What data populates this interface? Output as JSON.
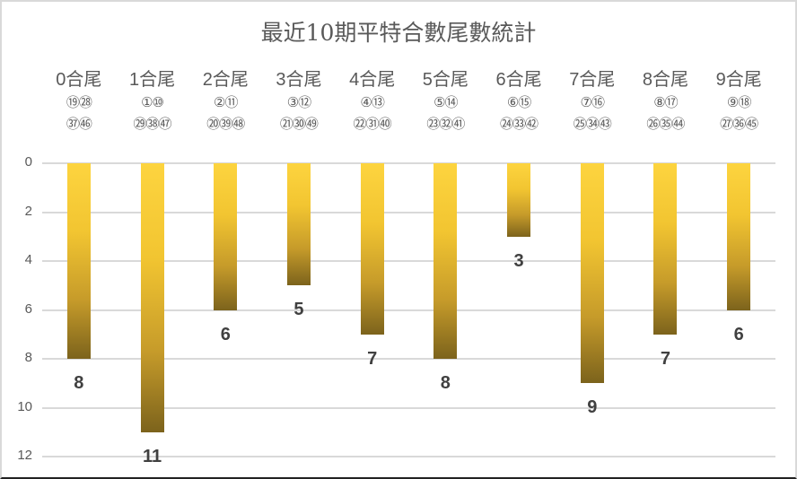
{
  "chart_data": {
    "type": "bar",
    "orientation": "vertical-inverted",
    "title": "最近10期平特合數尾數統計",
    "categories": [
      "0合尾",
      "1合尾",
      "2合尾",
      "3合尾",
      "4合尾",
      "5合尾",
      "6合尾",
      "7合尾",
      "8合尾",
      "9合尾"
    ],
    "category_numbers": [
      [
        "⑲㉘",
        "㊲㊻"
      ],
      [
        "①⑩",
        "㉙㊳㊼"
      ],
      [
        "②⑪",
        "⑳㊴㊽"
      ],
      [
        "③⑫",
        "㉑㉚㊾"
      ],
      [
        "④⑬",
        "㉒㉛㊵"
      ],
      [
        "⑤⑭",
        "㉓㉜㊶"
      ],
      [
        "⑥⑮",
        "㉔㉝㊷"
      ],
      [
        "⑦⑯",
        "㉕㉞㊸"
      ],
      [
        "⑧⑰",
        "㉖㉟㊹"
      ],
      [
        "⑨⑱",
        "㉗㊱㊺"
      ]
    ],
    "values": [
      8,
      11,
      6,
      5,
      7,
      8,
      3,
      9,
      7,
      6
    ],
    "yticks": [
      "0",
      "2",
      "4",
      "6",
      "8",
      "10",
      "12"
    ],
    "ylim": [
      0,
      12
    ],
    "y_inverted": true,
    "grid": true,
    "legend": null,
    "xlabel": "",
    "ylabel": "",
    "bar_color_top": "#fdd43f",
    "bar_color_bottom": "#7c631c"
  }
}
